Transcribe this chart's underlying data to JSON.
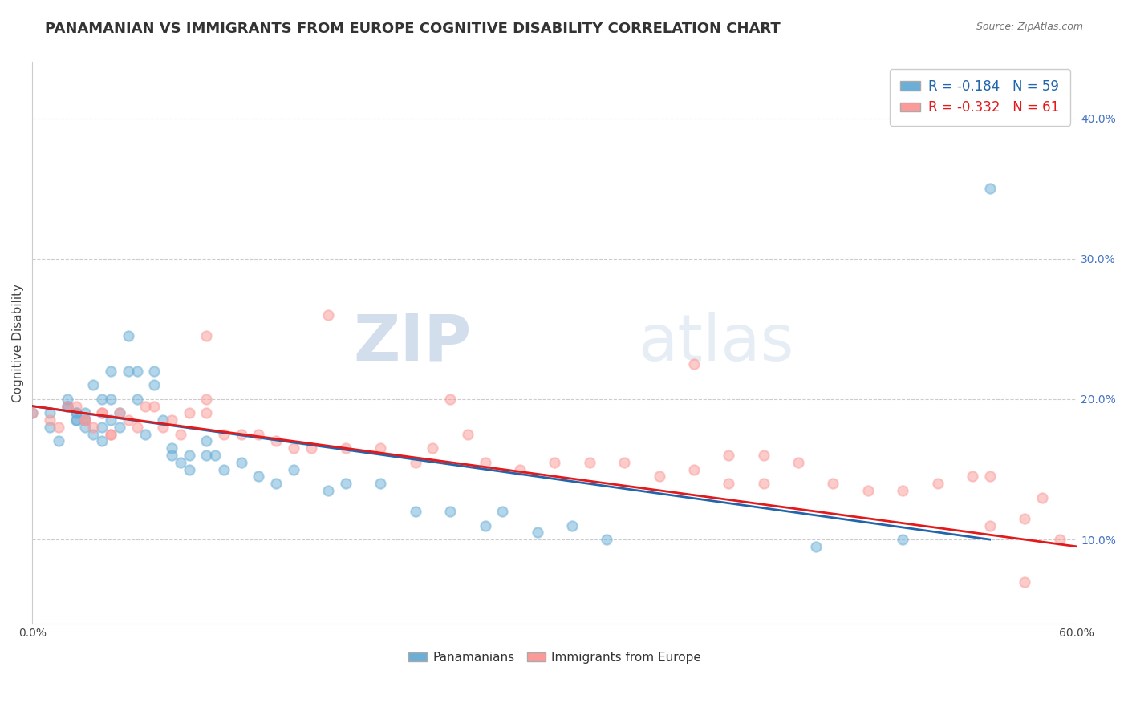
{
  "title": "PANAMANIAN VS IMMIGRANTS FROM EUROPE COGNITIVE DISABILITY CORRELATION CHART",
  "source": "Source: ZipAtlas.com",
  "ylabel": "Cognitive Disability",
  "xlim": [
    0.0,
    0.6
  ],
  "ylim": [
    0.04,
    0.44
  ],
  "xtick_positions": [
    0.0,
    0.1,
    0.2,
    0.3,
    0.4,
    0.5,
    0.6
  ],
  "xticklabels": [
    "0.0%",
    "",
    "",
    "",
    "",
    "",
    "60.0%"
  ],
  "yticks_right": [
    0.1,
    0.2,
    0.3,
    0.4
  ],
  "ytick_right_labels": [
    "10.0%",
    "20.0%",
    "30.0%",
    "40.0%"
  ],
  "legend_r1": "R = -0.184",
  "legend_n1": "N = 59",
  "legend_r2": "R = -0.332",
  "legend_n2": "N = 61",
  "color_blue": "#6baed6",
  "color_pink": "#fb9a99",
  "color_blue_line": "#2166ac",
  "color_pink_line": "#e31a1c",
  "background_color": "#ffffff",
  "grid_color": "#cccccc",
  "watermark_zip": "ZIP",
  "watermark_atlas": "atlas",
  "blue_scatter_x": [
    0.0,
    0.01,
    0.01,
    0.015,
    0.02,
    0.02,
    0.02,
    0.025,
    0.025,
    0.025,
    0.025,
    0.03,
    0.03,
    0.03,
    0.03,
    0.035,
    0.035,
    0.04,
    0.04,
    0.04,
    0.045,
    0.045,
    0.045,
    0.05,
    0.05,
    0.055,
    0.055,
    0.06,
    0.06,
    0.065,
    0.07,
    0.07,
    0.075,
    0.08,
    0.08,
    0.085,
    0.09,
    0.09,
    0.1,
    0.1,
    0.105,
    0.11,
    0.12,
    0.13,
    0.14,
    0.15,
    0.17,
    0.18,
    0.2,
    0.22,
    0.24,
    0.26,
    0.27,
    0.29,
    0.31,
    0.33,
    0.45,
    0.5,
    0.55
  ],
  "blue_scatter_y": [
    0.19,
    0.18,
    0.19,
    0.17,
    0.195,
    0.195,
    0.2,
    0.19,
    0.185,
    0.185,
    0.19,
    0.18,
    0.185,
    0.185,
    0.19,
    0.175,
    0.21,
    0.17,
    0.18,
    0.2,
    0.185,
    0.2,
    0.22,
    0.18,
    0.19,
    0.22,
    0.245,
    0.2,
    0.22,
    0.175,
    0.21,
    0.22,
    0.185,
    0.165,
    0.16,
    0.155,
    0.16,
    0.15,
    0.16,
    0.17,
    0.16,
    0.15,
    0.155,
    0.145,
    0.14,
    0.15,
    0.135,
    0.14,
    0.14,
    0.12,
    0.12,
    0.11,
    0.12,
    0.105,
    0.11,
    0.1,
    0.095,
    0.1,
    0.35
  ],
  "pink_scatter_x": [
    0.0,
    0.01,
    0.015,
    0.02,
    0.025,
    0.03,
    0.03,
    0.035,
    0.04,
    0.04,
    0.045,
    0.045,
    0.05,
    0.055,
    0.06,
    0.065,
    0.07,
    0.075,
    0.08,
    0.085,
    0.09,
    0.1,
    0.1,
    0.11,
    0.12,
    0.13,
    0.14,
    0.15,
    0.16,
    0.18,
    0.2,
    0.22,
    0.23,
    0.24,
    0.26,
    0.28,
    0.3,
    0.32,
    0.34,
    0.36,
    0.38,
    0.4,
    0.42,
    0.44,
    0.46,
    0.48,
    0.5,
    0.52,
    0.54,
    0.55,
    0.57,
    0.58,
    0.59,
    0.1,
    0.17,
    0.25,
    0.38,
    0.4,
    0.42,
    0.55,
    0.57
  ],
  "pink_scatter_y": [
    0.19,
    0.185,
    0.18,
    0.195,
    0.195,
    0.185,
    0.185,
    0.18,
    0.19,
    0.19,
    0.175,
    0.175,
    0.19,
    0.185,
    0.18,
    0.195,
    0.195,
    0.18,
    0.185,
    0.175,
    0.19,
    0.19,
    0.2,
    0.175,
    0.175,
    0.175,
    0.17,
    0.165,
    0.165,
    0.165,
    0.165,
    0.155,
    0.165,
    0.2,
    0.155,
    0.15,
    0.155,
    0.155,
    0.155,
    0.145,
    0.15,
    0.14,
    0.14,
    0.155,
    0.14,
    0.135,
    0.135,
    0.14,
    0.145,
    0.145,
    0.115,
    0.13,
    0.1,
    0.245,
    0.26,
    0.175,
    0.225,
    0.16,
    0.16,
    0.11,
    0.07
  ],
  "blue_line_x": [
    0.0,
    0.55
  ],
  "blue_line_y": [
    0.195,
    0.1
  ],
  "pink_line_x": [
    0.0,
    0.6
  ],
  "pink_line_y": [
    0.195,
    0.095
  ],
  "title_fontsize": 13,
  "label_fontsize": 11,
  "tick_fontsize": 10,
  "legend_fontsize": 12,
  "scatter_size": 80,
  "scatter_alpha": 0.5,
  "scatter_linewidth": 1.5
}
